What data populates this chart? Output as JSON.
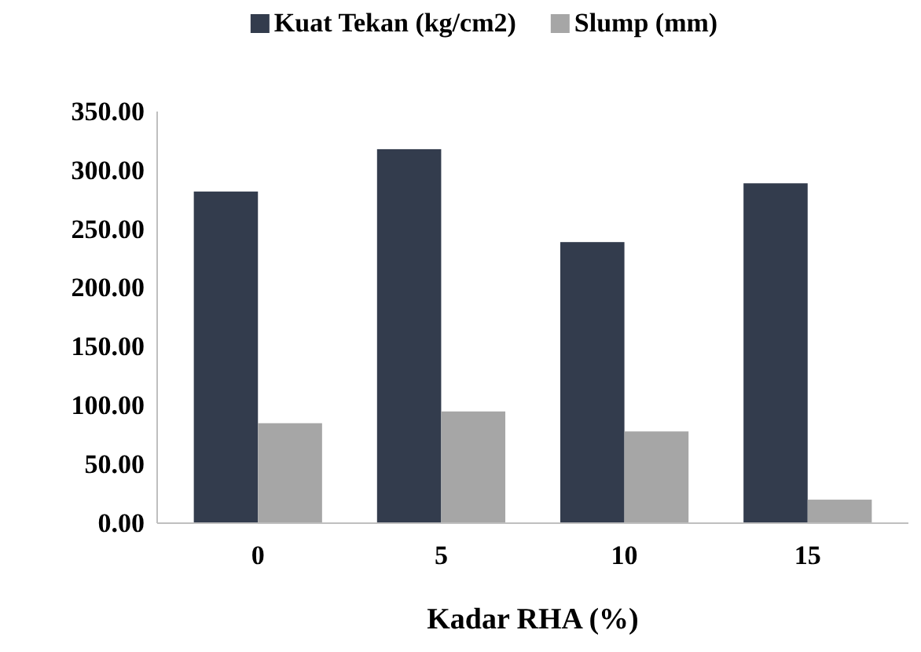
{
  "chart_data": {
    "type": "bar",
    "xlabel": "Kadar RHA (%)",
    "categories": [
      "0",
      "5",
      "10",
      "15"
    ],
    "series": [
      {
        "name": "Kuat Tekan (kg/cm2)",
        "color": "#333c4d",
        "values": [
          282,
          318,
          239,
          289
        ]
      },
      {
        "name": "Slump (mm)",
        "color": "#a6a6a6",
        "values": [
          85,
          95,
          78,
          20
        ]
      }
    ],
    "ylim": [
      0,
      350
    ],
    "yticks": [
      {
        "value": 0,
        "label": "0.00"
      },
      {
        "value": 50,
        "label": "50.00"
      },
      {
        "value": 100,
        "label": "100.00"
      },
      {
        "value": 150,
        "label": "150.00"
      },
      {
        "value": 200,
        "label": "200.00"
      },
      {
        "value": 250,
        "label": "250.00"
      },
      {
        "value": 300,
        "label": "300.00"
      },
      {
        "value": 350,
        "label": "350.00"
      }
    ],
    "grid": false,
    "legend": "top"
  }
}
